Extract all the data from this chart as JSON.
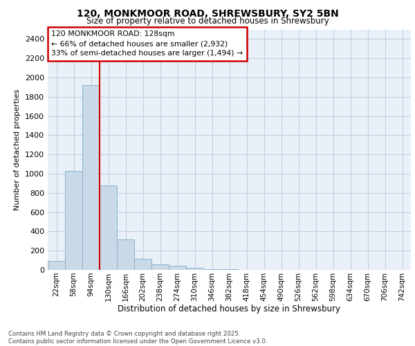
{
  "title_line1": "120, MONKMOOR ROAD, SHREWSBURY, SY2 5BN",
  "title_line2": "Size of property relative to detached houses in Shrewsbury",
  "xlabel": "Distribution of detached houses by size in Shrewsbury",
  "ylabel": "Number of detached properties",
  "categories": [
    "22sqm",
    "58sqm",
    "94sqm",
    "130sqm",
    "166sqm",
    "202sqm",
    "238sqm",
    "274sqm",
    "310sqm",
    "346sqm",
    "382sqm",
    "418sqm",
    "454sqm",
    "490sqm",
    "526sqm",
    "562sqm",
    "598sqm",
    "634sqm",
    "670sqm",
    "706sqm",
    "742sqm"
  ],
  "values": [
    90,
    1030,
    1920,
    880,
    315,
    115,
    55,
    40,
    20,
    10,
    10,
    0,
    0,
    0,
    0,
    0,
    0,
    0,
    0,
    0,
    0
  ],
  "bar_color": "#c9d9e8",
  "bar_edge_color": "#8ab4cc",
  "annotation_text": "120 MONKMOOR ROAD: 128sqm\n← 66% of detached houses are smaller (2,932)\n33% of semi-detached houses are larger (1,494) →",
  "annotation_box_color": "#ffffff",
  "annotation_box_edge_color": "#cc0000",
  "ylim": [
    0,
    2500
  ],
  "yticks": [
    0,
    200,
    400,
    600,
    800,
    1000,
    1200,
    1400,
    1600,
    1800,
    2000,
    2200,
    2400
  ],
  "vline_color": "#cc0000",
  "background_color": "#ffffff",
  "plot_bg_color": "#eaf0f8",
  "grid_color": "#c0d0e0",
  "footer_line1": "Contains HM Land Registry data © Crown copyright and database right 2025.",
  "footer_line2": "Contains public sector information licensed under the Open Government Licence v3.0."
}
